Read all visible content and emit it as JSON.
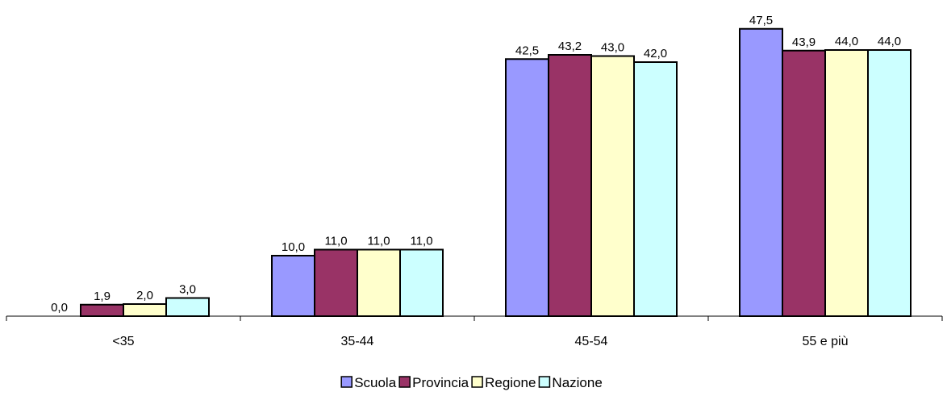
{
  "chart_data": {
    "type": "bar",
    "categories": [
      "<35",
      "35-44",
      "45-54",
      "55 e più"
    ],
    "series": [
      {
        "name": "Scuola",
        "values": [
          0.0,
          10.0,
          42.5,
          47.5
        ],
        "labels": [
          "0,0",
          "10,0",
          "42,5",
          "47,5"
        ],
        "color": "#9999FF"
      },
      {
        "name": "Provincia",
        "values": [
          1.9,
          11.0,
          43.2,
          43.9
        ],
        "labels": [
          "1,9",
          "11,0",
          "43,2",
          "43,9"
        ],
        "color": "#993366"
      },
      {
        "name": "Regione",
        "values": [
          2.0,
          11.0,
          43.0,
          44.0
        ],
        "labels": [
          "2,0",
          "11,0",
          "43,0",
          "44,0"
        ],
        "color": "#FFFFCC"
      },
      {
        "name": "Nazione",
        "values": [
          3.0,
          11.0,
          42.0,
          44.0
        ],
        "labels": [
          "3,0",
          "11,0",
          "42,0",
          "44,0"
        ],
        "color": "#CCFFFF"
      }
    ],
    "title": "",
    "xlabel": "",
    "ylabel": "",
    "ylim": [
      0,
      50
    ],
    "grid": false,
    "legend_position": "bottom"
  }
}
